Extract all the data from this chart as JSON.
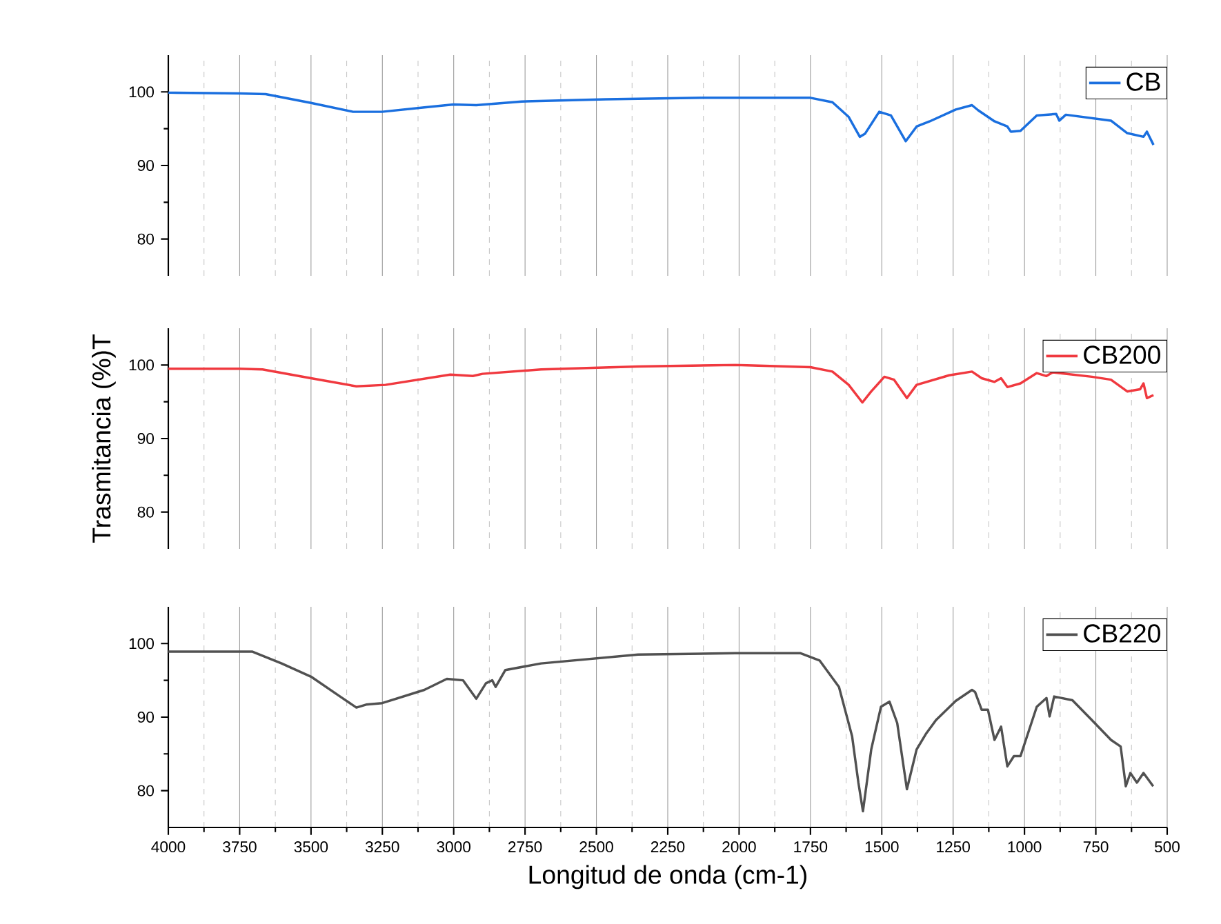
{
  "chart_data": [
    {
      "type": "line",
      "x": [
        4000,
        3750,
        3659,
        3500,
        3353,
        3251,
        3103,
        3001,
        2921,
        2762,
        2467,
        2127,
        1750,
        1673,
        1616,
        1577,
        1559,
        1509,
        1468,
        1416,
        1378,
        1332,
        1241,
        1184,
        1162,
        1105,
        1060,
        1048,
        1014,
        957,
        889,
        878,
        855,
        697,
        640,
        583,
        571,
        548
      ],
      "series": [
        {
          "name": "CB",
          "color": "#1a6fdf",
          "values": [
            99.9,
            99.8,
            99.7,
            98.5,
            97.3,
            97.3,
            97.9,
            98.3,
            98.2,
            98.7,
            99.0,
            99.2,
            99.2,
            98.6,
            96.6,
            93.9,
            94.3,
            97.3,
            96.8,
            93.3,
            95.3,
            96.0,
            97.6,
            98.2,
            97.5,
            96.0,
            95.3,
            94.6,
            94.7,
            96.8,
            97.0,
            96.1,
            96.9,
            96.1,
            94.4,
            93.9,
            94.6,
            92.8
          ]
        }
      ],
      "xlim": [
        4000,
        500
      ],
      "xticks": [
        4000,
        3750,
        3500,
        3250,
        3000,
        2750,
        2500,
        2250,
        2000,
        1750,
        1500,
        1250,
        1000,
        750,
        500
      ],
      "ylim": [
        75,
        105
      ],
      "yticks": [
        80,
        90,
        100
      ],
      "grid": "x",
      "legend": "top right",
      "tick_labels": "y"
    },
    {
      "type": "line",
      "x": [
        4000,
        3750,
        3670,
        3500,
        3341,
        3239,
        3012,
        2933,
        2899,
        2694,
        2354,
        2013,
        1750,
        1673,
        1616,
        1568,
        1537,
        1491,
        1457,
        1412,
        1378,
        1264,
        1184,
        1150,
        1105,
        1082,
        1060,
        1014,
        957,
        923,
        901,
        764,
        697,
        640,
        595,
        583,
        571,
        548
      ],
      "series": [
        {
          "name": "CB200",
          "color": "#f0393f",
          "values": [
            99.5,
            99.5,
            99.4,
            98.2,
            97.1,
            97.3,
            98.7,
            98.5,
            98.8,
            99.4,
            99.8,
            100.0,
            99.7,
            99.1,
            97.3,
            94.9,
            96.4,
            98.4,
            98.0,
            95.5,
            97.3,
            98.6,
            99.1,
            98.2,
            97.7,
            98.2,
            97.0,
            97.5,
            98.9,
            98.5,
            99.0,
            98.4,
            98.0,
            96.4,
            96.7,
            97.5,
            95.5,
            95.9
          ]
        }
      ],
      "xlim": [
        4000,
        500
      ],
      "xticks": [
        4000,
        3750,
        3500,
        3250,
        3000,
        2750,
        2500,
        2250,
        2000,
        1750,
        1500,
        1250,
        1000,
        750,
        500
      ],
      "ylim": [
        75,
        105
      ],
      "yticks": [
        80,
        90,
        100
      ],
      "ylabel": "Trasmitancia (%)T",
      "grid": "x",
      "legend": "top right",
      "tick_labels": "y"
    },
    {
      "type": "line",
      "x": [
        4000,
        3705,
        3603,
        3500,
        3398,
        3341,
        3307,
        3251,
        3103,
        3024,
        2967,
        2921,
        2887,
        2865,
        2853,
        2819,
        2694,
        2354,
        2013,
        1786,
        1718,
        1650,
        1604,
        1582,
        1566,
        1537,
        1503,
        1473,
        1446,
        1412,
        1378,
        1344,
        1310,
        1241,
        1184,
        1173,
        1150,
        1128,
        1105,
        1082,
        1060,
        1037,
        1014,
        957,
        923,
        912,
        896,
        832,
        764,
        697,
        663,
        645,
        629,
        606,
        583,
        549
      ],
      "series": [
        {
          "name": "CB220",
          "color": "#515151",
          "values": [
            98.9,
            98.9,
            97.3,
            95.5,
            92.8,
            91.3,
            91.7,
            91.9,
            93.7,
            95.2,
            95.0,
            92.5,
            94.6,
            95.0,
            94.1,
            96.4,
            97.3,
            98.5,
            98.7,
            98.7,
            97.7,
            94.1,
            87.4,
            81.1,
            77.2,
            85.6,
            91.4,
            92.1,
            89.2,
            80.2,
            85.6,
            87.8,
            89.6,
            92.2,
            93.7,
            93.4,
            91.0,
            91.0,
            86.9,
            88.7,
            83.3,
            84.7,
            84.7,
            91.4,
            92.6,
            90.1,
            92.8,
            92.3,
            89.6,
            86.9,
            86.0,
            80.6,
            82.4,
            81.1,
            82.4,
            80.6
          ]
        }
      ],
      "xlim": [
        4000,
        500
      ],
      "xticks": [
        4000,
        3750,
        3500,
        3250,
        3000,
        2750,
        2500,
        2250,
        2000,
        1750,
        1500,
        1250,
        1000,
        750,
        500
      ],
      "ylim": [
        75,
        105
      ],
      "yticks": [
        80,
        90,
        100
      ],
      "xlabel": "Longitud de onda (cm-1)",
      "grid": "x",
      "legend": "top right"
    }
  ]
}
